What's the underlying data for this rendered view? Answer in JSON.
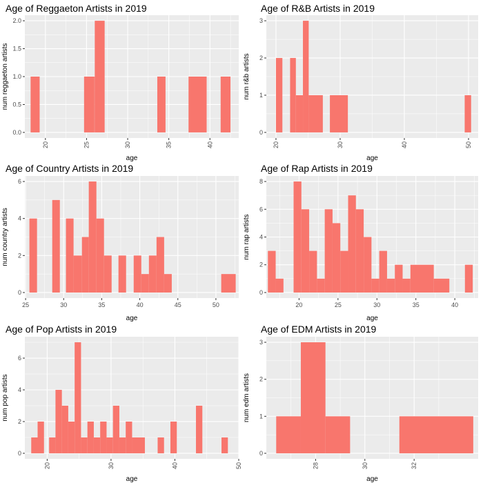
{
  "chart_data": [
    {
      "type": "bar",
      "title": "Age of Reggaeton Artists in 2019",
      "xlabel": "age",
      "ylabel": "num reggaeton artists",
      "xlim": [
        17.5,
        43.5
      ],
      "ylim": [
        -0.1,
        2.1
      ],
      "xticks": [
        20,
        25,
        30,
        35,
        40
      ],
      "yticks": [
        0.0,
        0.5,
        1.0,
        1.5,
        2.0
      ],
      "ytick_labels": [
        "0.0",
        "0.5",
        "1.0",
        "1.5",
        "2.0"
      ],
      "x_tick_rotation": -90,
      "bins": [
        {
          "x0": 18.2,
          "x1": 19.3,
          "value": 1
        },
        {
          "x0": 24.7,
          "x1": 25.9,
          "value": 1
        },
        {
          "x0": 25.9,
          "x1": 26.0,
          "value": 1
        },
        {
          "x0": 26.0,
          "x1": 27.2,
          "value": 2
        },
        {
          "x0": 33.6,
          "x1": 34.6,
          "value": 1
        },
        {
          "x0": 37.4,
          "x1": 39.6,
          "value": 1
        },
        {
          "x0": 41.3,
          "x1": 42.5,
          "value": 1
        }
      ]
    },
    {
      "type": "bar",
      "title": "Age of R&B Artists in 2019",
      "xlabel": "age",
      "ylabel": "num r&b artists",
      "xlim": [
        18.5,
        51.5
      ],
      "ylim": [
        -0.15,
        3.15
      ],
      "xticks": [
        20,
        30,
        40,
        50
      ],
      "yticks": [
        0,
        1,
        2,
        3
      ],
      "ytick_labels": [
        "0",
        "1",
        "2",
        "3"
      ],
      "x_tick_rotation": -90,
      "bins": [
        {
          "x0": 20.0,
          "x1": 21.0,
          "value": 2
        },
        {
          "x0": 22.2,
          "x1": 23.1,
          "value": 2
        },
        {
          "x0": 23.1,
          "x1": 24.2,
          "value": 1
        },
        {
          "x0": 24.2,
          "x1": 25.1,
          "value": 3
        },
        {
          "x0": 25.1,
          "x1": 27.3,
          "value": 1
        },
        {
          "x0": 28.4,
          "x1": 31.2,
          "value": 1
        },
        {
          "x0": 49.4,
          "x1": 50.4,
          "value": 1
        }
      ]
    },
    {
      "type": "bar",
      "title": "Age of Country Artists in 2019",
      "xlabel": "age",
      "ylabel": "num country artists",
      "xlim": [
        24.9,
        53.0
      ],
      "ylim": [
        -0.3,
        6.3
      ],
      "xticks": [
        25,
        30,
        35,
        40,
        45,
        50
      ],
      "yticks": [
        0,
        2,
        4,
        6
      ],
      "ytick_labels": [
        "0",
        "2",
        "4",
        "6"
      ],
      "x_tick_rotation": 0,
      "bins": [
        {
          "x0": 25.5,
          "x1": 26.5,
          "value": 4
        },
        {
          "x0": 28.5,
          "x1": 29.5,
          "value": 5
        },
        {
          "x0": 30.3,
          "x1": 31.3,
          "value": 4
        },
        {
          "x0": 31.3,
          "x1": 32.4,
          "value": 2
        },
        {
          "x0": 32.4,
          "x1": 33.3,
          "value": 3
        },
        {
          "x0": 33.3,
          "x1": 34.3,
          "value": 6
        },
        {
          "x0": 34.3,
          "x1": 35.3,
          "value": 4
        },
        {
          "x0": 35.3,
          "x1": 36.3,
          "value": 2
        },
        {
          "x0": 37.2,
          "x1": 38.2,
          "value": 2
        },
        {
          "x0": 39.2,
          "x1": 40.2,
          "value": 2
        },
        {
          "x0": 40.2,
          "x1": 41.2,
          "value": 1
        },
        {
          "x0": 41.2,
          "x1": 42.2,
          "value": 2
        },
        {
          "x0": 42.2,
          "x1": 43.2,
          "value": 3
        },
        {
          "x0": 43.2,
          "x1": 44.2,
          "value": 1
        },
        {
          "x0": 50.7,
          "x1": 52.6,
          "value": 1
        }
      ]
    },
    {
      "type": "bar",
      "title": "Age of Rap Artists in 2019",
      "xlabel": "age",
      "ylabel": "num rap artists",
      "xlim": [
        15.8,
        43.0
      ],
      "ylim": [
        -0.4,
        8.4
      ],
      "xticks": [
        20,
        25,
        30,
        35,
        40
      ],
      "yticks": [
        0,
        2,
        4,
        6,
        8
      ],
      "ytick_labels": [
        "0",
        "2",
        "4",
        "6",
        "8"
      ],
      "x_tick_rotation": 0,
      "bins": [
        {
          "x0": 16.0,
          "x1": 17.0,
          "value": 3
        },
        {
          "x0": 17.0,
          "x1": 18.0,
          "value": 1
        },
        {
          "x0": 19.3,
          "x1": 20.3,
          "value": 8
        },
        {
          "x0": 20.3,
          "x1": 21.3,
          "value": 6
        },
        {
          "x0": 21.3,
          "x1": 22.3,
          "value": 3
        },
        {
          "x0": 22.3,
          "x1": 23.3,
          "value": 1
        },
        {
          "x0": 23.3,
          "x1": 24.3,
          "value": 6
        },
        {
          "x0": 24.3,
          "x1": 25.3,
          "value": 5
        },
        {
          "x0": 25.3,
          "x1": 26.3,
          "value": 3
        },
        {
          "x0": 26.3,
          "x1": 27.3,
          "value": 7
        },
        {
          "x0": 27.3,
          "x1": 28.3,
          "value": 6
        },
        {
          "x0": 28.3,
          "x1": 29.3,
          "value": 4
        },
        {
          "x0": 29.3,
          "x1": 30.3,
          "value": 1
        },
        {
          "x0": 30.3,
          "x1": 31.3,
          "value": 3
        },
        {
          "x0": 31.3,
          "x1": 32.3,
          "value": 1
        },
        {
          "x0": 32.3,
          "x1": 33.3,
          "value": 2
        },
        {
          "x0": 33.3,
          "x1": 34.3,
          "value": 1
        },
        {
          "x0": 34.3,
          "x1": 37.3,
          "value": 2
        },
        {
          "x0": 37.3,
          "x1": 39.3,
          "value": 1
        },
        {
          "x0": 41.3,
          "x1": 42.3,
          "value": 2
        }
      ]
    },
    {
      "type": "bar",
      "title": "Age of Pop Artists in 2019",
      "xlabel": "age",
      "ylabel": "num pop artists",
      "xlim": [
        16.5,
        50.0
      ],
      "ylim": [
        -0.35,
        7.35
      ],
      "xticks": [
        20,
        30,
        40,
        50
      ],
      "yticks": [
        0,
        2,
        4,
        6
      ],
      "ytick_labels": [
        "0",
        "2",
        "4",
        "6"
      ],
      "x_tick_rotation": -90,
      "bins": [
        {
          "x0": 17.5,
          "x1": 18.5,
          "value": 1
        },
        {
          "x0": 18.5,
          "x1": 19.5,
          "value": 2
        },
        {
          "x0": 20.3,
          "x1": 21.3,
          "value": 1
        },
        {
          "x0": 21.3,
          "x1": 22.3,
          "value": 4
        },
        {
          "x0": 22.3,
          "x1": 23.3,
          "value": 3
        },
        {
          "x0": 23.3,
          "x1": 24.3,
          "value": 2
        },
        {
          "x0": 24.3,
          "x1": 25.3,
          "value": 7
        },
        {
          "x0": 25.3,
          "x1": 26.3,
          "value": 1
        },
        {
          "x0": 26.3,
          "x1": 27.3,
          "value": 2
        },
        {
          "x0": 27.3,
          "x1": 28.3,
          "value": 1
        },
        {
          "x0": 28.3,
          "x1": 29.3,
          "value": 2
        },
        {
          "x0": 29.3,
          "x1": 30.3,
          "value": 1
        },
        {
          "x0": 30.3,
          "x1": 31.3,
          "value": 3
        },
        {
          "x0": 31.3,
          "x1": 32.3,
          "value": 1
        },
        {
          "x0": 32.3,
          "x1": 33.3,
          "value": 2
        },
        {
          "x0": 33.3,
          "x1": 35.3,
          "value": 1
        },
        {
          "x0": 37.3,
          "x1": 38.3,
          "value": 1
        },
        {
          "x0": 39.3,
          "x1": 40.3,
          "value": 2
        },
        {
          "x0": 43.3,
          "x1": 44.3,
          "value": 3
        },
        {
          "x0": 47.3,
          "x1": 48.3,
          "value": 1
        }
      ]
    },
    {
      "type": "bar",
      "title": "Age of EDM Artists in 2019",
      "xlabel": "age",
      "ylabel": "num edm artists",
      "xlim": [
        26.0,
        34.6
      ],
      "ylim": [
        -0.15,
        3.15
      ],
      "xticks": [
        28,
        30,
        32
      ],
      "yticks": [
        0,
        1,
        2,
        3
      ],
      "ytick_labels": [
        "0",
        "1",
        "2",
        "3"
      ],
      "x_tick_rotation": -90,
      "bins": [
        {
          "x0": 26.4,
          "x1": 27.4,
          "value": 1
        },
        {
          "x0": 27.4,
          "x1": 28.4,
          "value": 3
        },
        {
          "x0": 28.4,
          "x1": 29.4,
          "value": 1
        },
        {
          "x0": 31.4,
          "x1": 34.4,
          "value": 1
        }
      ]
    }
  ]
}
